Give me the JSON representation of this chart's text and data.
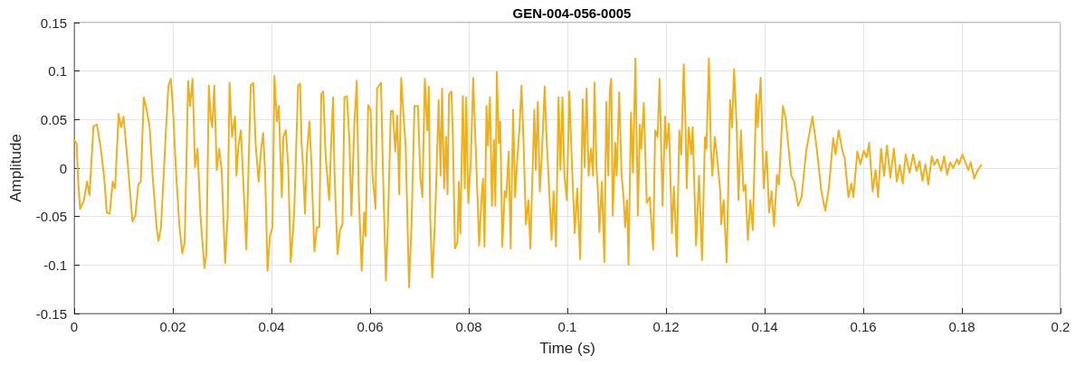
{
  "chart_data": {
    "type": "line",
    "title": "GEN-004-056-0005",
    "xlabel": "Time (s)",
    "ylabel": "Amplitude",
    "color": "#edb120",
    "grid": true,
    "marker": "none",
    "line_style": "solid",
    "xlim": [
      0,
      0.2
    ],
    "xticks": [
      0,
      0.02,
      0.04,
      0.06,
      0.08,
      0.1,
      0.12,
      0.14,
      0.16,
      0.18,
      0.2
    ],
    "ylim": [
      -0.15,
      0.15
    ],
    "yticks": [
      -0.15,
      -0.1,
      -0.05,
      0,
      0.05,
      0.1,
      0.15
    ],
    "x": [
      0,
      0.0005,
      0.0008,
      0.0012,
      0.002,
      0.0026,
      0.0031,
      0.0039,
      0.0046,
      0.0054,
      0.0061,
      0.0066,
      0.0072,
      0.0078,
      0.0083,
      0.009,
      0.0095,
      0.01,
      0.0106,
      0.0112,
      0.0118,
      0.0124,
      0.013,
      0.0135,
      0.0141,
      0.0147,
      0.0153,
      0.0159,
      0.0167,
      0.0171,
      0.0176,
      0.0185,
      0.0191,
      0.0196,
      0.0201,
      0.0206,
      0.0213,
      0.0219,
      0.0224,
      0.0231,
      0.0235,
      0.024,
      0.0245,
      0.025,
      0.0256,
      0.0264,
      0.0268,
      0.0273,
      0.0277,
      0.028,
      0.0284,
      0.0289,
      0.0294,
      0.0299,
      0.0306,
      0.0311,
      0.0315,
      0.032,
      0.0326,
      0.0329,
      0.0333,
      0.0338,
      0.0344,
      0.0349,
      0.0358,
      0.0363,
      0.0368,
      0.0374,
      0.0379,
      0.0383,
      0.0387,
      0.0392,
      0.0397,
      0.0402,
      0.0406,
      0.0411,
      0.0415,
      0.0418,
      0.0421,
      0.0424,
      0.0429,
      0.0434,
      0.0439,
      0.0443,
      0.0446,
      0.0454,
      0.0458,
      0.0461,
      0.0464,
      0.0468,
      0.0472,
      0.0477,
      0.0481,
      0.0487,
      0.0492,
      0.0497,
      0.0501,
      0.0505,
      0.051,
      0.0517,
      0.0521,
      0.0525,
      0.0528,
      0.0534,
      0.0539,
      0.0544,
      0.0548,
      0.0553,
      0.0558,
      0.0562,
      0.0568,
      0.0573,
      0.0577,
      0.0583,
      0.0588,
      0.0591,
      0.0596,
      0.0601,
      0.0605,
      0.0611,
      0.0614,
      0.0622,
      0.0626,
      0.0632,
      0.0637,
      0.0642,
      0.0646,
      0.0651,
      0.0655,
      0.0659,
      0.0663,
      0.0667,
      0.0672,
      0.0679,
      0.0684,
      0.069,
      0.0697,
      0.0702,
      0.0706,
      0.0711,
      0.0716,
      0.0719,
      0.0722,
      0.0726,
      0.0731,
      0.0734,
      0.0739,
      0.0743,
      0.0746,
      0.075,
      0.0754,
      0.0757,
      0.076,
      0.0765,
      0.0768,
      0.0772,
      0.0777,
      0.078,
      0.0783,
      0.0788,
      0.0792,
      0.0795,
      0.0799,
      0.0804,
      0.0809,
      0.0813,
      0.0818,
      0.0821,
      0.0826,
      0.0829,
      0.0832,
      0.0836,
      0.0839,
      0.0843,
      0.0847,
      0.0851,
      0.0854,
      0.0857,
      0.0861,
      0.0864,
      0.0868,
      0.0873,
      0.0876,
      0.0881,
      0.0885,
      0.089,
      0.0894,
      0.0899,
      0.0903,
      0.0907,
      0.0911,
      0.0916,
      0.0921,
      0.0925,
      0.093,
      0.0933,
      0.0936,
      0.094,
      0.0944,
      0.0948,
      0.0954,
      0.0958,
      0.0962,
      0.0968,
      0.0972,
      0.0977,
      0.0982,
      0.0986,
      0.099,
      0.0994,
      0.0999,
      0.1004,
      0.1009,
      0.1015,
      0.102,
      0.1026,
      0.1031,
      0.1035,
      0.1039,
      0.1043,
      0.1048,
      0.1052,
      0.1055,
      0.1059,
      0.1062,
      0.1065,
      0.107,
      0.1075,
      0.1079,
      0.1083,
      0.1086,
      0.1089,
      0.1092,
      0.1097,
      0.11,
      0.1105,
      0.111,
      0.1114,
      0.1117,
      0.1121,
      0.1124,
      0.1129,
      0.1133,
      0.1138,
      0.1143,
      0.1147,
      0.115,
      0.1155,
      0.1161,
      0.1167,
      0.1174,
      0.1178,
      0.1183,
      0.1187,
      0.1193,
      0.1198,
      0.1201,
      0.1206,
      0.1212,
      0.1216,
      0.1222,
      0.1227,
      0.1231,
      0.1236,
      0.1239,
      0.1242,
      0.1246,
      0.1251,
      0.1254,
      0.1261,
      0.1267,
      0.1273,
      0.1279,
      0.1282,
      0.1287,
      0.1291,
      0.1294,
      0.1299,
      0.1303,
      0.131,
      0.1312,
      0.1317,
      0.1323,
      0.133,
      0.1334,
      0.1338,
      0.1343,
      0.1347,
      0.1352,
      0.1357,
      0.1361,
      0.1366,
      0.1371,
      0.1376,
      0.1383,
      0.1386,
      0.1392,
      0.1398,
      0.1404,
      0.1409,
      0.1414,
      0.1419,
      0.1425,
      0.1429,
      0.1437,
      0.1443,
      0.1454,
      0.146,
      0.1468,
      0.1475,
      0.1484,
      0.1497,
      0.1505,
      0.1515,
      0.1523,
      0.153,
      0.1539,
      0.1544,
      0.155,
      0.1558,
      0.1562,
      0.157,
      0.1576,
      0.158,
      0.1588,
      0.1594,
      0.1601,
      0.1607,
      0.1612,
      0.1619,
      0.1625,
      0.163,
      0.1636,
      0.1642,
      0.1648,
      0.1655,
      0.1662,
      0.1668,
      0.1674,
      0.168,
      0.1686,
      0.1694,
      0.1701,
      0.1708,
      0.1714,
      0.172,
      0.1726,
      0.1732,
      0.1739,
      0.1744,
      0.175,
      0.1758,
      0.1764,
      0.177,
      0.1776,
      0.1782,
      0.179,
      0.1794,
      0.1801,
      0.1807,
      0.1813,
      0.1818,
      0.1825,
      0.1831,
      0.1839
    ],
    "values": [
      0.029,
      0.025,
      -0.014,
      -0.042,
      -0.033,
      -0.014,
      -0.028,
      0.043,
      0.045,
      0.02,
      -0.011,
      -0.046,
      -0.047,
      -0.014,
      -0.021,
      0.056,
      0.042,
      0.053,
      0.02,
      -0.017,
      -0.055,
      -0.049,
      -0.017,
      -0.014,
      0.073,
      0.06,
      0.042,
      -0.008,
      -0.061,
      -0.075,
      -0.061,
      0.029,
      0.085,
      0.092,
      0.054,
      0.001,
      -0.058,
      -0.088,
      -0.077,
      0.09,
      0.064,
      0.092,
      0.001,
      0.02,
      -0.049,
      -0.103,
      -0.089,
      0.085,
      0.051,
      0.042,
      0.085,
      -0.002,
      0.02,
      -0.002,
      -0.098,
      -0.052,
      0.088,
      0.032,
      0.053,
      -0.008,
      0.023,
      0.039,
      -0.027,
      -0.084,
      0.085,
      0.088,
      0.023,
      -0.014,
      0.02,
      0.036,
      -0.002,
      -0.106,
      -0.07,
      -0.061,
      0.095,
      0.048,
      0.064,
      0.014,
      -0.03,
      0.032,
      0.039,
      0.001,
      -0.097,
      -0.07,
      -0.046,
      0.085,
      0.087,
      0.026,
      0.001,
      -0.047,
      0.017,
      0.048,
      0.004,
      -0.086,
      -0.061,
      -0.061,
      0.076,
      0.079,
      0.011,
      -0.033,
      0.026,
      0.073,
      -0.008,
      -0.089,
      -0.064,
      -0.058,
      0.073,
      0.074,
      0.029,
      -0.049,
      0.045,
      0.09,
      -0.027,
      -0.106,
      -0.046,
      -0.07,
      0.065,
      0.06,
      -0.008,
      -0.042,
      0.082,
      0.088,
      -0.002,
      -0.116,
      -0.042,
      0.059,
      0.059,
      0.017,
      0.054,
      -0.027,
      0.093,
      0.06,
      0.023,
      -0.123,
      -0.058,
      0.064,
      0.064,
      -0.011,
      -0.03,
      0.092,
      0.039,
      0.084,
      -0.052,
      -0.113,
      -0.061,
      -0.017,
      0.07,
      -0.008,
      0.082,
      -0.021,
      0.032,
      -0.027,
      0.076,
      0.079,
      0.029,
      -0.083,
      -0.077,
      -0.014,
      -0.067,
      0.074,
      -0.021,
      0.073,
      -0.036,
      0.004,
      0.093,
      0.036,
      -0.033,
      -0.08,
      -0.03,
      -0.011,
      -0.081,
      0.064,
      0.023,
      0.073,
      -0.039,
      0.029,
      -0.039,
      0.099,
      0.026,
      0.048,
      -0.081,
      -0.024,
      -0.03,
      0.017,
      -0.083,
      0.06,
      -0.03,
      0.014,
      0.042,
      0.085,
      0.029,
      -0.058,
      -0.033,
      -0.083,
      0.007,
      0.06,
      -0.002,
      0.068,
      -0.024,
      0.011,
      0.084,
      0.029,
      -0.011,
      -0.074,
      -0.024,
      -0.081,
      0.073,
      -0.002,
      0.073,
      -0.008,
      -0.033,
      0.079,
      0.007,
      -0.067,
      -0.021,
      -0.094,
      0.071,
      0.001,
      0.082,
      -0.008,
      0.02,
      -0.008,
      0.088,
      0.001,
      -0.024,
      -0.066,
      -0.014,
      -0.097,
      0.068,
      -0.008,
      0.079,
      0.092,
      -0.049,
      0.026,
      -0.008,
      0.078,
      -0.008,
      -0.03,
      -0.061,
      -0.033,
      -0.1,
      0.057,
      -0.005,
      0.113,
      -0.049,
      0.045,
      0.02,
      0.067,
      -0.036,
      -0.03,
      -0.084,
      0.039,
      0.032,
      0.092,
      -0.039,
      0.053,
      0.02,
      0.046,
      -0.067,
      -0.019,
      -0.091,
      0.039,
      0.014,
      0.107,
      0.057,
      -0.021,
      0.042,
      0.014,
      0.042,
      -0.08,
      -0.008,
      -0.095,
      0.032,
      0.02,
      0.113,
      0.02,
      -0.008,
      0.032,
      0.014,
      -0.024,
      -0.058,
      -0.033,
      -0.097,
      0.07,
      0.042,
      0.102,
      0.048,
      -0.033,
      0.039,
      -0.024,
      -0.017,
      -0.074,
      -0.033,
      -0.064,
      0.076,
      0.042,
      0.093,
      -0.021,
      0.017,
      -0.046,
      -0.024,
      -0.06,
      -0.007,
      -0.017,
      0.064,
      0.05,
      -0.008,
      -0.014,
      -0.039,
      -0.03,
      0.017,
      0.053,
      0.023,
      -0.024,
      -0.044,
      -0.021,
      0.031,
      0.014,
      0.039,
      0.017,
      0.011,
      -0.03,
      -0.016,
      -0.03,
      0.017,
      0.004,
      0.018,
      0.011,
      0.026,
      -0.024,
      -0.002,
      -0.03,
      0.02,
      -0.008,
      0.023,
      -0.01,
      0.02,
      -0.014,
      0.003,
      -0.016,
      0.014,
      -0.005,
      0.014,
      -0.003,
      0.007,
      -0.013,
      0.004,
      -0.017,
      0.012,
      0.003,
      0.009,
      -0.003,
      0.012,
      -0.007,
      0.006,
      0,
      0.009,
      0.004,
      0.014,
      0.006,
      -0.002,
      0.006,
      -0.011,
      -0.003,
      0.003
    ]
  }
}
